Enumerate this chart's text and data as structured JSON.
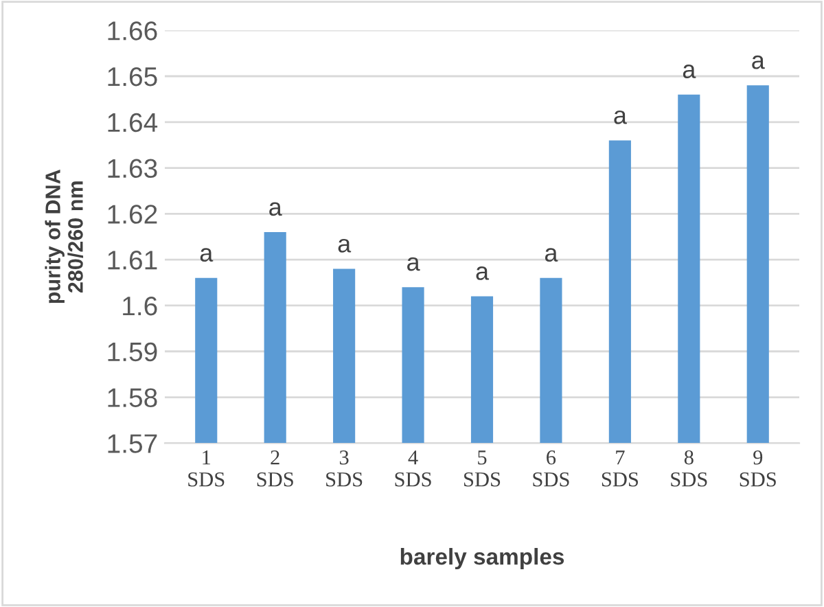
{
  "chart_data": {
    "type": "bar",
    "categories": [
      "1\nSDS",
      "2\nSDS",
      "3\nSDS",
      "4\nSDS",
      "5\nSDS",
      "6\nSDS",
      "7\nSDS",
      "8\nSDS",
      "9\nSDS"
    ],
    "values": [
      1.606,
      1.616,
      1.608,
      1.604,
      1.602,
      1.606,
      1.636,
      1.646,
      1.648
    ],
    "value_labels": [
      "a",
      "a",
      "a",
      "a",
      "a",
      "a",
      "a",
      "a",
      "a"
    ],
    "color": "#5b9bd5",
    "xlabel": "barely samples",
    "ylabel": "purity of DNA\n280/260 nm",
    "ylim": [
      1.57,
      1.66
    ],
    "yticks": [
      1.57,
      1.58,
      1.59,
      1.6,
      1.61,
      1.62,
      1.63,
      1.64,
      1.65,
      1.66
    ],
    "grid": "y",
    "legend": false
  }
}
